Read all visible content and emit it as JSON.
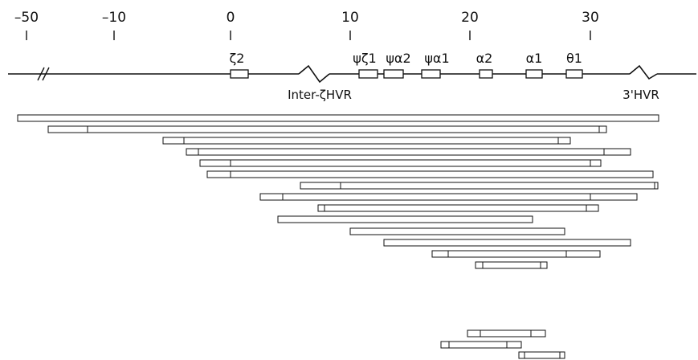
{
  "scale": {
    "ticks": [
      {
        "label": "–50",
        "value": -50
      },
      {
        "label": "–10",
        "value": -10
      },
      {
        "label": "0",
        "value": 0
      },
      {
        "label": "10",
        "value": 10
      },
      {
        "label": "20",
        "value": 20
      },
      {
        "label": "30",
        "value": 30
      }
    ]
  },
  "genes": [
    {
      "name": "ζ2"
    },
    {
      "name": "ψζ1"
    },
    {
      "name": "ψα2"
    },
    {
      "name": "ψα1"
    },
    {
      "name": "α2"
    },
    {
      "name": "α1"
    },
    {
      "name": "θ1"
    }
  ],
  "hvr_labels": {
    "inter_zeta": "Inter-ζHVR",
    "three_prime": "3'HVR"
  },
  "colors": {
    "line": "#111111",
    "box_fill": "#ffffff"
  }
}
